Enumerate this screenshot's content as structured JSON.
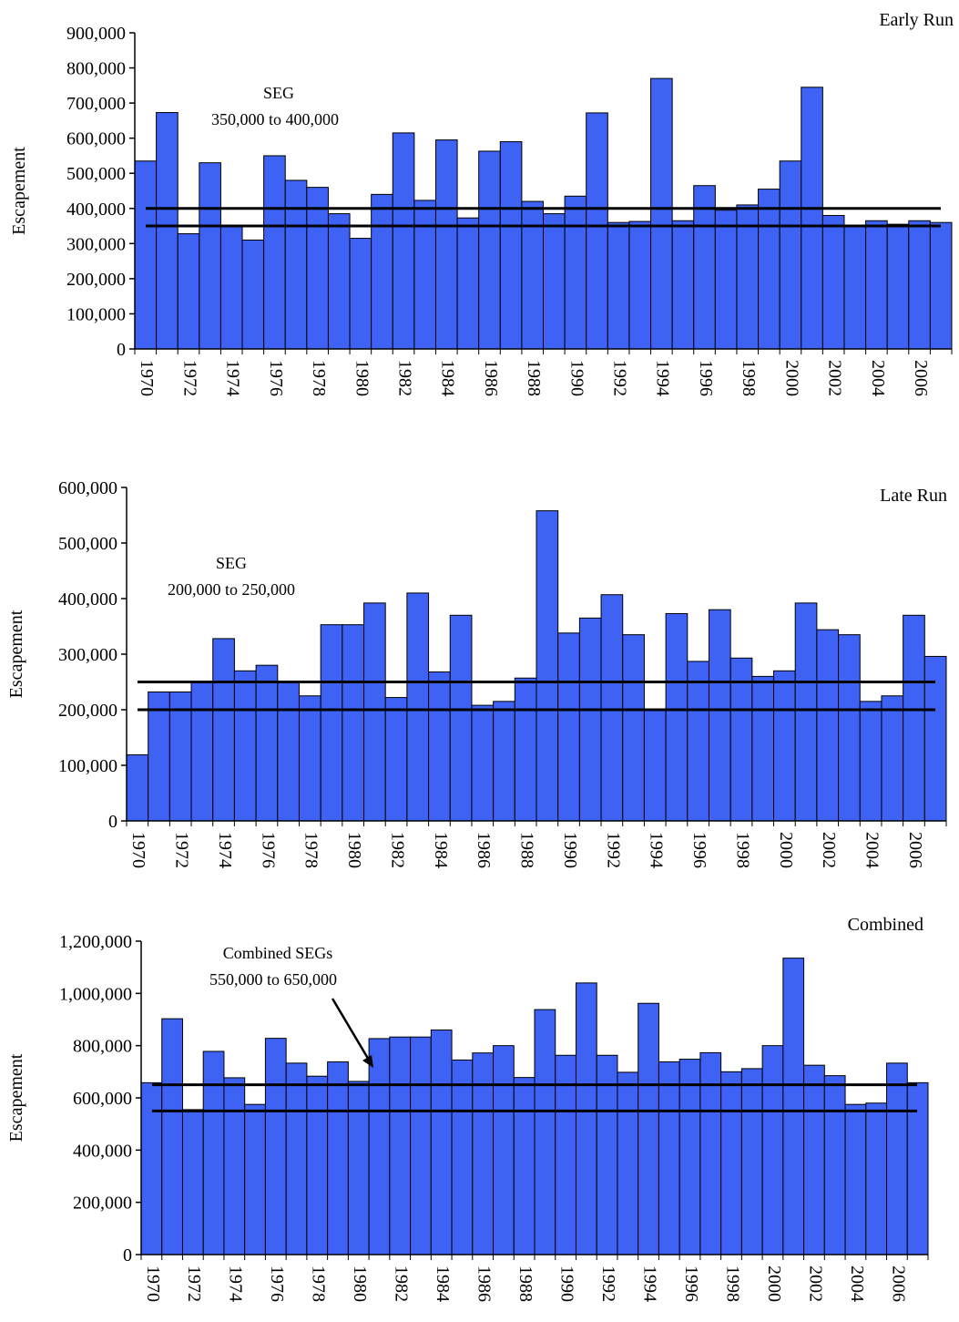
{
  "chart_data": [
    {
      "type": "bar",
      "title": "Early Run",
      "ylabel": "Escapement",
      "ylim": [
        0,
        900000
      ],
      "yticks": [
        "0",
        "100,000",
        "200,000",
        "300,000",
        "400,000",
        "500,000",
        "600,000",
        "700,000",
        "800,000",
        "900,000"
      ],
      "categories": [
        1970,
        1971,
        1972,
        1973,
        1974,
        1975,
        1976,
        1977,
        1978,
        1979,
        1980,
        1981,
        1982,
        1983,
        1984,
        1985,
        1986,
        1987,
        1988,
        1989,
        1990,
        1991,
        1992,
        1993,
        1994,
        1995,
        1996,
        1997,
        1998,
        1999,
        2000,
        2001,
        2002,
        2003,
        2004,
        2005,
        2006,
        2007
      ],
      "xtick_labels": [
        "1970",
        "1972",
        "1974",
        "1976",
        "1978",
        "1980",
        "1982",
        "1984",
        "1986",
        "1988",
        "1990",
        "1992",
        "1994",
        "1996",
        "1998",
        "2000",
        "2002",
        "2004",
        "2006"
      ],
      "values": [
        535000,
        673000,
        328000,
        530000,
        352000,
        310000,
        550000,
        480000,
        460000,
        385000,
        315000,
        440000,
        615000,
        423000,
        595000,
        373000,
        563000,
        590000,
        420000,
        385000,
        435000,
        672000,
        360000,
        363000,
        770000,
        365000,
        465000,
        395000,
        410000,
        455000,
        535000,
        745000,
        380000,
        350000,
        365000,
        355000,
        365000,
        360000
      ],
      "goal_lines": [
        350000,
        400000
      ],
      "annotation": [
        "SEG",
        "350,000 to 400,000"
      ],
      "grid": false,
      "bar_color": "#3d62f4"
    },
    {
      "type": "bar",
      "title": "Late Run",
      "ylabel": "Escapement",
      "ylim": [
        0,
        600000
      ],
      "yticks": [
        "0",
        "100,000",
        "200,000",
        "300,000",
        "400,000",
        "500,000",
        "600,000"
      ],
      "categories": [
        1970,
        1971,
        1972,
        1973,
        1974,
        1975,
        1976,
        1977,
        1978,
        1979,
        1980,
        1981,
        1982,
        1983,
        1984,
        1985,
        1986,
        1987,
        1988,
        1989,
        1990,
        1991,
        1992,
        1993,
        1994,
        1995,
        1996,
        1997,
        1998,
        1999,
        2000,
        2001,
        2002,
        2003,
        2004,
        2005,
        2006,
        2007
      ],
      "xtick_labels": [
        "1970",
        "1972",
        "1974",
        "1976",
        "1978",
        "1980",
        "1982",
        "1984",
        "1986",
        "1988",
        "1990",
        "1992",
        "1994",
        "1996",
        "1998",
        "2000",
        "2002",
        "2004",
        "2006"
      ],
      "values": [
        119000,
        232000,
        232000,
        250000,
        328000,
        270000,
        280000,
        250000,
        225000,
        353000,
        353000,
        392000,
        222000,
        410000,
        268000,
        370000,
        208000,
        215000,
        257000,
        558000,
        338000,
        365000,
        407000,
        335000,
        200000,
        373000,
        287000,
        380000,
        293000,
        260000,
        270000,
        392000,
        344000,
        335000,
        215000,
        225000,
        370000,
        296000
      ],
      "goal_lines": [
        200000,
        250000
      ],
      "annotation": [
        "SEG",
        "200,000 to 250,000"
      ],
      "grid": false,
      "bar_color": "#3d62f4"
    },
    {
      "type": "bar",
      "title": "Combined",
      "ylabel": "Escapement",
      "ylim": [
        0,
        1200000
      ],
      "yticks": [
        "0",
        "200,000",
        "400,000",
        "600,000",
        "800,000",
        "1,000,000",
        "1,200,000"
      ],
      "categories": [
        1970,
        1971,
        1972,
        1973,
        1974,
        1975,
        1976,
        1977,
        1978,
        1979,
        1980,
        1981,
        1982,
        1983,
        1984,
        1985,
        1986,
        1987,
        1988,
        1989,
        1990,
        1991,
        1992,
        1993,
        1994,
        1995,
        1996,
        1997,
        1998,
        1999,
        2000,
        2001,
        2002,
        2003,
        2004,
        2005,
        2006,
        2007
      ],
      "xtick_labels": [
        "1970",
        "1972",
        "1974",
        "1976",
        "1978",
        "1980",
        "1982",
        "1984",
        "1986",
        "1988",
        "1990",
        "1992",
        "1994",
        "1996",
        "1998",
        "2000",
        "2002",
        "2004",
        "2006"
      ],
      "values": [
        658000,
        903000,
        555000,
        778000,
        677000,
        575000,
        828000,
        733000,
        683000,
        738000,
        663000,
        827000,
        833000,
        833000,
        860000,
        745000,
        772000,
        800000,
        678000,
        938000,
        763000,
        1040000,
        763000,
        698000,
        962000,
        738000,
        748000,
        773000,
        700000,
        712000,
        800000,
        1135000,
        725000,
        685000,
        575000,
        580000,
        733000,
        658000
      ],
      "goal_lines": [
        550000,
        650000
      ],
      "annotation": [
        "Combined SEGs",
        "550,000 to 650,000"
      ],
      "grid": false,
      "bar_color": "#3d62f4"
    }
  ]
}
